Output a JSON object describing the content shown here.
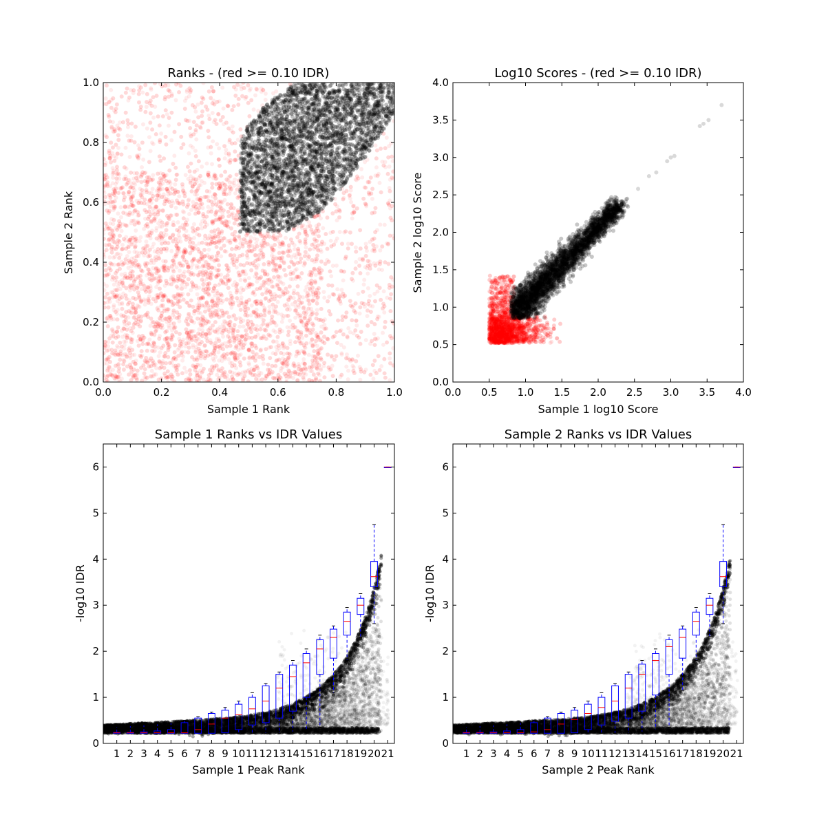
{
  "chart_data": [
    {
      "id": "p1",
      "type": "scatter",
      "title": "Ranks - (red >= 0.10 IDR)",
      "xlabel": "Sample 1 Rank",
      "ylabel": "Sample 2 Rank",
      "xlim": [
        0.0,
        1.0
      ],
      "ylim": [
        0.0,
        1.0
      ],
      "xticks": [
        "0.0",
        "0.2",
        "0.4",
        "0.6",
        "0.8",
        "1.0"
      ],
      "yticks": [
        "0.0",
        "0.2",
        "0.4",
        "0.6",
        "0.8",
        "1.0"
      ],
      "colors": {
        "pass": "#000000",
        "fail": "#ff0000"
      },
      "regions": {
        "fail_area": "uniform noise over [0,1]x[0,1], densest in lower-left",
        "pass_area": "upper-right lobe bounded by x~0.47-1.0, y~0.5-1.0"
      }
    },
    {
      "id": "p2",
      "type": "scatter",
      "title": "Log10 Scores - (red >= 0.10 IDR)",
      "xlabel": "Sample 1 log10 Score",
      "ylabel": "Sample 2 log10 Score",
      "xlim": [
        0.0,
        4.0
      ],
      "ylim": [
        0.0,
        4.0
      ],
      "xticks": [
        "0.0",
        "0.5",
        "1.0",
        "1.5",
        "2.0",
        "2.5",
        "3.0",
        "3.5",
        "4.0"
      ],
      "yticks": [
        "0.0",
        "0.5",
        "1.0",
        "1.5",
        "2.0",
        "2.5",
        "3.0",
        "3.5",
        "4.0"
      ],
      "colors": {
        "pass": "#000000",
        "fail": "#ff0000"
      },
      "outlier_points": [
        [
          2.4,
          2.45
        ],
        [
          2.55,
          2.58
        ],
        [
          2.7,
          2.75
        ],
        [
          2.8,
          2.8
        ],
        [
          2.95,
          2.95
        ],
        [
          3.0,
          3.0
        ],
        [
          3.05,
          3.02
        ],
        [
          3.4,
          3.42
        ],
        [
          3.45,
          3.45
        ],
        [
          3.52,
          3.5
        ],
        [
          3.7,
          3.7
        ]
      ]
    },
    {
      "id": "p3",
      "type": "box",
      "title": "Sample 1 Ranks vs IDR Values",
      "xlabel": "Sample 1 Peak Rank",
      "ylabel": "-log10 IDR",
      "ylim": [
        0,
        6.5
      ],
      "xticks": [
        "1",
        "2",
        "3",
        "4",
        "5",
        "6",
        "7",
        "8",
        "9",
        "10",
        "11",
        "12",
        "13",
        "14",
        "15",
        "16",
        "17",
        "18",
        "19",
        "20",
        "21"
      ],
      "yticks": [
        "0",
        "1",
        "2",
        "3",
        "4",
        "5",
        "6"
      ],
      "boxes": [
        {
          "q1": 0.22,
          "median": 0.23,
          "q3": 0.24,
          "whisker_low": 0.22,
          "whisker_high": 0.36
        },
        {
          "q1": 0.22,
          "median": 0.23,
          "q3": 0.24,
          "whisker_low": 0.22,
          "whisker_high": 0.38
        },
        {
          "q1": 0.22,
          "median": 0.23,
          "q3": 0.25,
          "whisker_low": 0.22,
          "whisker_high": 0.4
        },
        {
          "q1": 0.22,
          "median": 0.23,
          "q3": 0.27,
          "whisker_low": 0.22,
          "whisker_high": 0.42
        },
        {
          "q1": 0.22,
          "median": 0.23,
          "q3": 0.3,
          "whisker_low": 0.22,
          "whisker_high": 0.45
        },
        {
          "q1": 0.22,
          "median": 0.23,
          "q3": 0.45,
          "whisker_low": 0.22,
          "whisker_high": 0.5
        },
        {
          "q1": 0.22,
          "median": 0.3,
          "q3": 0.55,
          "whisker_low": 0.22,
          "whisker_high": 0.58
        },
        {
          "q1": 0.22,
          "median": 0.42,
          "q3": 0.65,
          "whisker_low": 0.22,
          "whisker_high": 0.68
        },
        {
          "q1": 0.23,
          "median": 0.55,
          "q3": 0.72,
          "whisker_low": 0.22,
          "whisker_high": 0.78
        },
        {
          "q1": 0.3,
          "median": 0.62,
          "q3": 0.85,
          "whisker_low": 0.22,
          "whisker_high": 0.92
        },
        {
          "q1": 0.4,
          "median": 0.75,
          "q3": 1.0,
          "whisker_low": 0.22,
          "whisker_high": 1.1
        },
        {
          "q1": 0.45,
          "median": 0.92,
          "q3": 1.25,
          "whisker_low": 0.22,
          "whisker_high": 1.3
        },
        {
          "q1": 0.55,
          "median": 1.2,
          "q3": 1.5,
          "whisker_low": 0.22,
          "whisker_high": 1.55
        },
        {
          "q1": 0.7,
          "median": 1.45,
          "q3": 1.7,
          "whisker_low": 0.25,
          "whisker_high": 1.8
        },
        {
          "q1": 1.0,
          "median": 1.75,
          "q3": 1.95,
          "whisker_low": 0.3,
          "whisker_high": 2.05
        },
        {
          "q1": 1.5,
          "median": 2.05,
          "q3": 2.25,
          "whisker_low": 0.35,
          "whisker_high": 2.35
        },
        {
          "q1": 1.85,
          "median": 2.3,
          "q3": 2.48,
          "whisker_low": 1.1,
          "whisker_high": 2.55
        },
        {
          "q1": 2.35,
          "median": 2.65,
          "q3": 2.85,
          "whisker_low": 1.8,
          "whisker_high": 2.95
        },
        {
          "q1": 2.8,
          "median": 3.0,
          "q3": 3.15,
          "whisker_low": 2.3,
          "whisker_high": 3.25
        },
        {
          "q1": 3.4,
          "median": 3.62,
          "q3": 3.95,
          "whisker_low": 2.6,
          "whisker_high": 4.75
        },
        {
          "q1": 6.0,
          "median": 6.0,
          "q3": 6.0,
          "whisker_low": 6.0,
          "whisker_high": 6.0
        }
      ]
    },
    {
      "id": "p4",
      "type": "box",
      "title": "Sample 2 Ranks vs IDR Values",
      "xlabel": "Sample 2 Peak Rank",
      "ylabel": "-log10 IDR",
      "ylim": [
        0,
        6.5
      ],
      "xticks": [
        "1",
        "2",
        "3",
        "4",
        "5",
        "6",
        "7",
        "8",
        "9",
        "10",
        "11",
        "12",
        "13",
        "14",
        "15",
        "16",
        "17",
        "18",
        "19",
        "20",
        "21"
      ],
      "yticks": [
        "0",
        "1",
        "2",
        "3",
        "4",
        "5",
        "6"
      ],
      "boxes": [
        {
          "q1": 0.22,
          "median": 0.23,
          "q3": 0.24,
          "whisker_low": 0.22,
          "whisker_high": 0.36
        },
        {
          "q1": 0.22,
          "median": 0.23,
          "q3": 0.24,
          "whisker_low": 0.22,
          "whisker_high": 0.38
        },
        {
          "q1": 0.22,
          "median": 0.23,
          "q3": 0.25,
          "whisker_low": 0.22,
          "whisker_high": 0.4
        },
        {
          "q1": 0.22,
          "median": 0.23,
          "q3": 0.27,
          "whisker_low": 0.22,
          "whisker_high": 0.42
        },
        {
          "q1": 0.22,
          "median": 0.23,
          "q3": 0.3,
          "whisker_low": 0.22,
          "whisker_high": 0.45
        },
        {
          "q1": 0.22,
          "median": 0.25,
          "q3": 0.45,
          "whisker_low": 0.22,
          "whisker_high": 0.5
        },
        {
          "q1": 0.22,
          "median": 0.3,
          "q3": 0.55,
          "whisker_low": 0.22,
          "whisker_high": 0.58
        },
        {
          "q1": 0.22,
          "median": 0.42,
          "q3": 0.65,
          "whisker_low": 0.22,
          "whisker_high": 0.68
        },
        {
          "q1": 0.23,
          "median": 0.52,
          "q3": 0.72,
          "whisker_low": 0.22,
          "whisker_high": 0.78
        },
        {
          "q1": 0.3,
          "median": 0.65,
          "q3": 0.85,
          "whisker_low": 0.22,
          "whisker_high": 0.92
        },
        {
          "q1": 0.4,
          "median": 0.78,
          "q3": 1.0,
          "whisker_low": 0.22,
          "whisker_high": 1.1
        },
        {
          "q1": 0.48,
          "median": 0.92,
          "q3": 1.25,
          "whisker_low": 0.22,
          "whisker_high": 1.3
        },
        {
          "q1": 0.55,
          "median": 1.2,
          "q3": 1.5,
          "whisker_low": 0.22,
          "whisker_high": 1.55
        },
        {
          "q1": 0.7,
          "median": 1.5,
          "q3": 1.72,
          "whisker_low": 0.25,
          "whisker_high": 1.8
        },
        {
          "q1": 1.05,
          "median": 1.8,
          "q3": 1.95,
          "whisker_low": 0.3,
          "whisker_high": 2.05
        },
        {
          "q1": 1.5,
          "median": 2.1,
          "q3": 2.25,
          "whisker_low": 0.35,
          "whisker_high": 2.35
        },
        {
          "q1": 1.85,
          "median": 2.3,
          "q3": 2.48,
          "whisker_low": 1.15,
          "whisker_high": 2.55
        },
        {
          "q1": 2.35,
          "median": 2.65,
          "q3": 2.85,
          "whisker_low": 1.8,
          "whisker_high": 2.95
        },
        {
          "q1": 2.8,
          "median": 3.0,
          "q3": 3.15,
          "whisker_low": 2.32,
          "whisker_high": 3.25
        },
        {
          "q1": 3.4,
          "median": 3.62,
          "q3": 3.95,
          "whisker_low": 2.6,
          "whisker_high": 4.75
        },
        {
          "q1": 6.0,
          "median": 6.0,
          "q3": 6.0,
          "whisker_low": 6.0,
          "whisker_high": 6.0
        }
      ]
    }
  ]
}
